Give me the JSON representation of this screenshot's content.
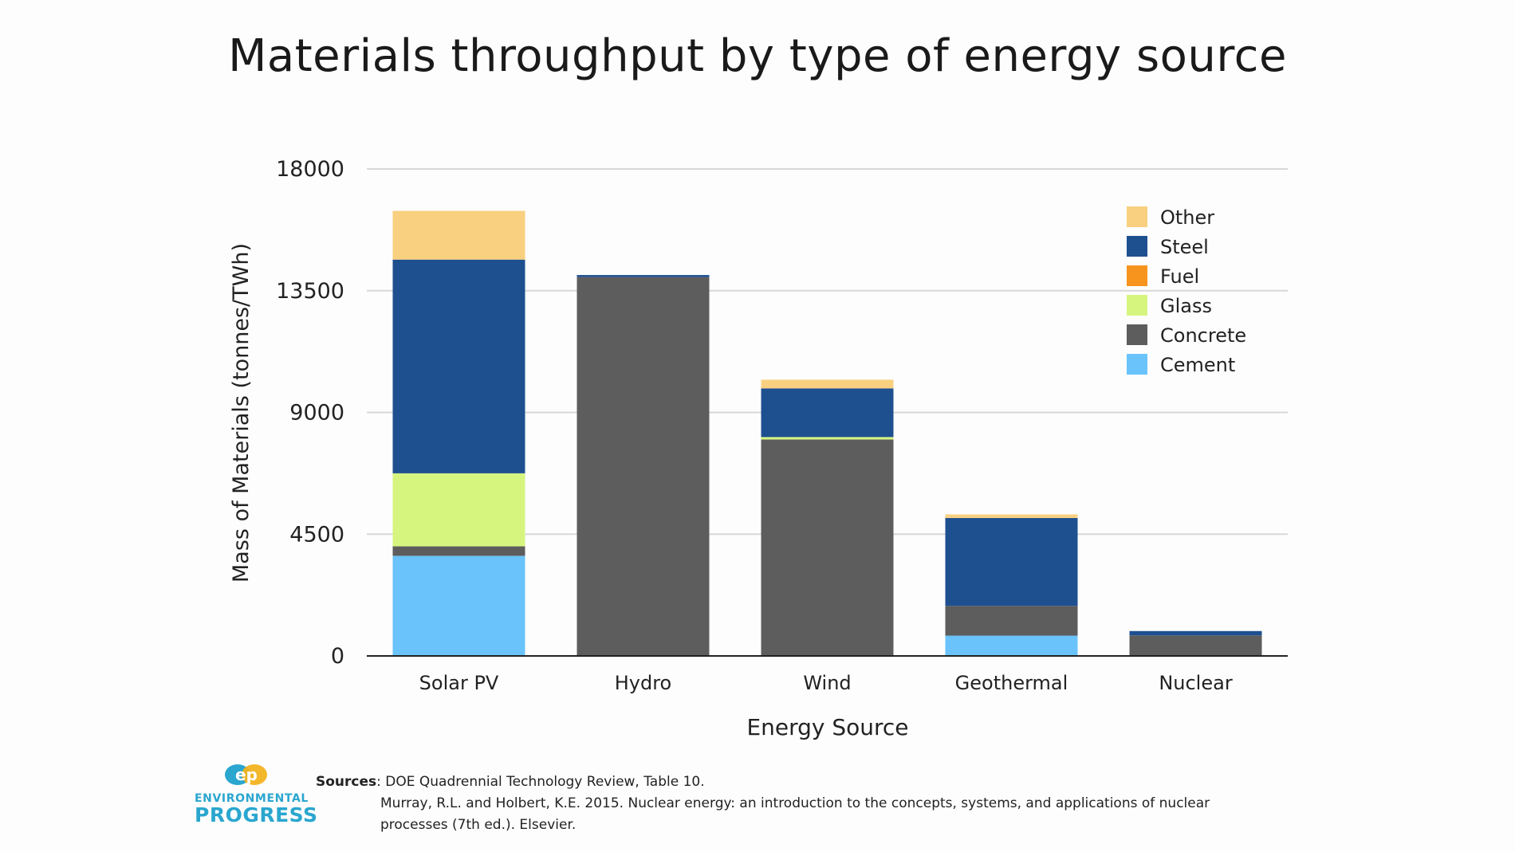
{
  "chart_data": {
    "type": "bar",
    "stacked": true,
    "title": "Materials throughput by type of energy source",
    "xlabel": "Energy Source",
    "ylabel": "Mass of Materials (tonnes/TWh)",
    "ylim": [
      0,
      18000
    ],
    "yticks": [
      0,
      4500,
      9000,
      13500,
      18000
    ],
    "grid": true,
    "legend_position": "top-right",
    "categories": [
      "Solar PV",
      "Hydro",
      "Wind",
      "Geothermal",
      "Nuclear"
    ],
    "series": [
      {
        "name": "Cement",
        "color": "#6ac3fb",
        "values": [
          3700,
          0,
          0,
          750,
          0
        ]
      },
      {
        "name": "Concrete",
        "color": "#5d5d5d",
        "values": [
          350,
          14000,
          8000,
          1100,
          760
        ]
      },
      {
        "name": "Glass",
        "color": "#d6f57f",
        "values": [
          2700,
          0,
          90,
          0,
          0
        ]
      },
      {
        "name": "Fuel",
        "color": "#f7941d",
        "values": [
          0,
          0,
          0,
          0,
          0
        ]
      },
      {
        "name": "Steel",
        "color": "#1e5090",
        "values": [
          7900,
          80,
          1800,
          3250,
          160
        ]
      },
      {
        "name": "Other",
        "color": "#f9d07f",
        "values": [
          1800,
          0,
          320,
          130,
          0
        ]
      }
    ],
    "legend_order": [
      "Other",
      "Steel",
      "Fuel",
      "Glass",
      "Concrete",
      "Cement"
    ]
  },
  "footer": {
    "sources_label": "Sources",
    "source_1": ": DOE Quadrennial Technology Review, Table 10.",
    "source_2": "Murray, R.L. and Holbert, K.E. 2015. Nuclear energy: an introduction to the concepts, systems, and applications of nuclear processes (7th ed.). Elsevier."
  },
  "logo": {
    "mark": "ep",
    "line1": "ENVIRONMENTAL",
    "line2": "PROGRESS"
  }
}
